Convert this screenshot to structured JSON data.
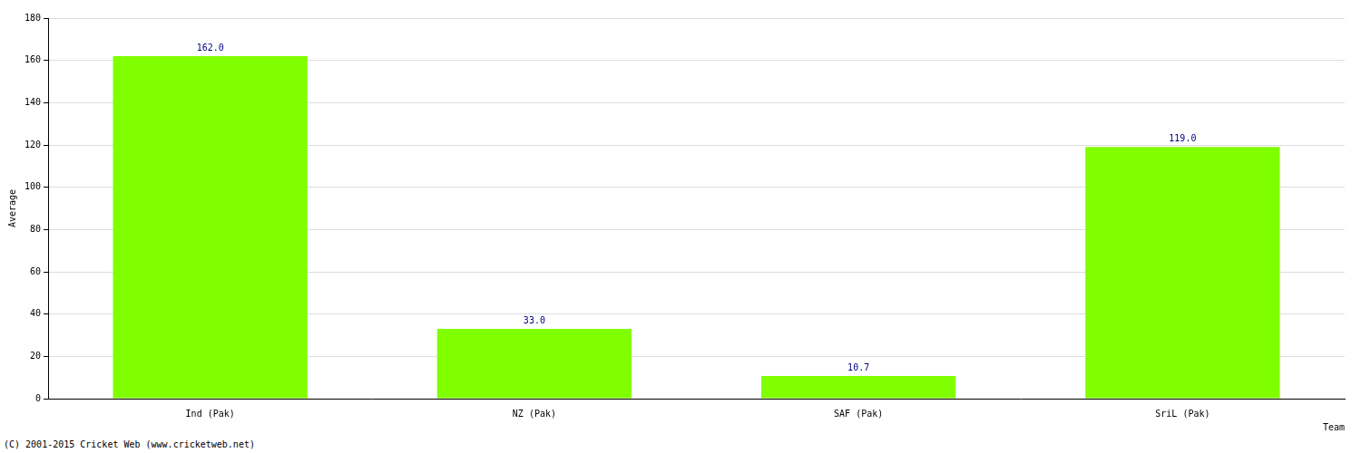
{
  "chart_data": {
    "type": "bar",
    "categories": [
      "Ind (Pak)",
      "NZ (Pak)",
      "SAF (Pak)",
      "SriL (Pak)"
    ],
    "values": [
      162.0,
      33.0,
      10.7,
      119.0
    ],
    "value_labels": [
      "162.0",
      "33.0",
      "10.7",
      "119.0"
    ],
    "data_labels": true,
    "color": "#80ff00",
    "x_label": "Team",
    "y_label": "Average",
    "ylim": [
      0,
      180
    ],
    "yticks": [
      0,
      20,
      40,
      60,
      80,
      100,
      120,
      140,
      160,
      180
    ],
    "grid": true,
    "annotations": [
      "(C) 2001-2015 Cricket Web (www.cricketweb.net)"
    ]
  }
}
